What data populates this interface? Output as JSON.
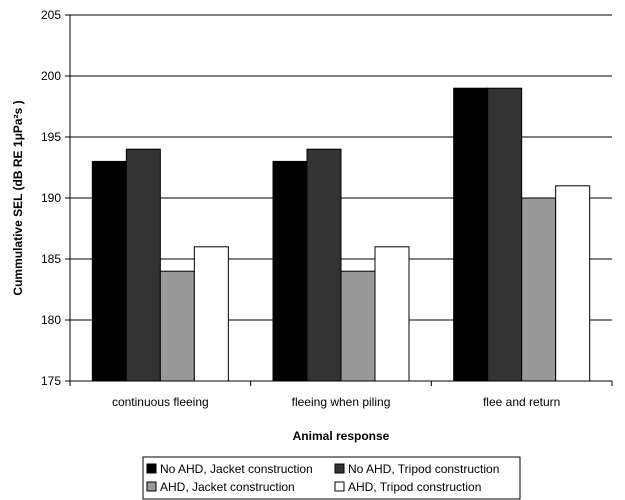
{
  "chart_data": {
    "type": "bar",
    "title": "",
    "xlabel": "Animal response",
    "ylabel": "Cummulative SEL (dB RE 1μPa²s )",
    "ylim": [
      175,
      205
    ],
    "yticks": [
      175,
      180,
      185,
      190,
      195,
      200,
      205
    ],
    "grid": true,
    "legend_position": "bottom",
    "categories": [
      "continuous fleeing",
      "fleeing when piling",
      "flee and return"
    ],
    "series": [
      {
        "name": "No AHD, Jacket construction",
        "color": "#000000",
        "values": [
          193,
          193,
          199
        ]
      },
      {
        "name": "No AHD, Tripod construction",
        "color": "#333333",
        "values": [
          194,
          194,
          199
        ]
      },
      {
        "name": "AHD, Jacket construction",
        "color": "#999999",
        "values": [
          184,
          184,
          190
        ]
      },
      {
        "name": "AHD, Tripod construction",
        "color": "#ffffff",
        "values": [
          186,
          186,
          191
        ]
      }
    ]
  }
}
